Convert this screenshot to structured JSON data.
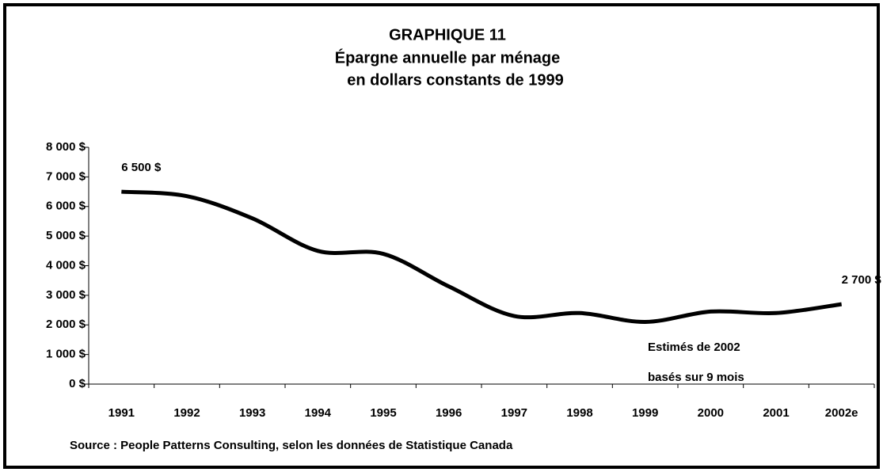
{
  "chart_data": {
    "type": "line",
    "title": [
      "GRAPHIQUE 11",
      "Épargne annuelle par ménage",
      "en dollars constants de 1999"
    ],
    "categories": [
      "1991",
      "1992",
      "1993",
      "1994",
      "1995",
      "1996",
      "1997",
      "1998",
      "1999",
      "2000",
      "2001",
      "2002e"
    ],
    "values": [
      6500,
      6350,
      5600,
      4500,
      4400,
      3300,
      2300,
      2400,
      2100,
      2450,
      2400,
      2700
    ],
    "value_labels": [
      "6 500 $",
      null,
      null,
      null,
      null,
      null,
      null,
      null,
      null,
      null,
      null,
      "2 700 $"
    ],
    "color": "#000000",
    "ylim": [
      0,
      8000
    ],
    "yticks": [
      {
        "value": 0,
        "label": "0 $"
      },
      {
        "value": 1000,
        "label": "1 000 $"
      },
      {
        "value": 2000,
        "label": "2 000 $"
      },
      {
        "value": 3000,
        "label": "3 000 $"
      },
      {
        "value": 4000,
        "label": "4 000 $"
      },
      {
        "value": 5000,
        "label": "5 000 $"
      },
      {
        "value": 6000,
        "label": "6 000 $"
      },
      {
        "value": 7000,
        "label": "7 000 $"
      },
      {
        "value": 8000,
        "label": "8 000 $"
      }
    ],
    "annotations": [
      "Estimés de 2002",
      "basés sur 9 mois"
    ],
    "source": "Source : People Patterns Consulting, selon les données de Statistique Canada"
  }
}
